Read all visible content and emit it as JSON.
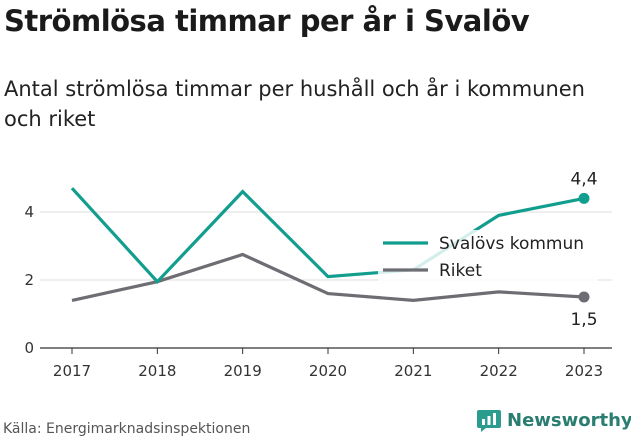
{
  "header": {
    "title": "Strömlösa timmar per år i Svalöv",
    "subtitle": "Antal strömlösa timmar per hushåll och år i kommunen och riket"
  },
  "chart_data": {
    "type": "line",
    "x": [
      "2017",
      "2018",
      "2019",
      "2020",
      "2021",
      "2022",
      "2023"
    ],
    "series": [
      {
        "name": "Svalövs kommun",
        "color": "#129e8e",
        "values": [
          4.7,
          1.95,
          4.6,
          2.1,
          2.3,
          3.9,
          4.4
        ]
      },
      {
        "name": "Riket",
        "color": "#6e6d73",
        "values": [
          1.4,
          1.95,
          2.75,
          1.6,
          1.4,
          1.65,
          1.5
        ]
      }
    ],
    "yticks": [
      0,
      2,
      4
    ],
    "ylim": [
      0,
      5
    ],
    "grid": true,
    "legend_position": "center-right",
    "end_labels": [
      "4,4",
      "1,5"
    ]
  },
  "footer": {
    "source": "Källa: Energimarknadsinspektionen",
    "brand": "Newsworthy"
  }
}
